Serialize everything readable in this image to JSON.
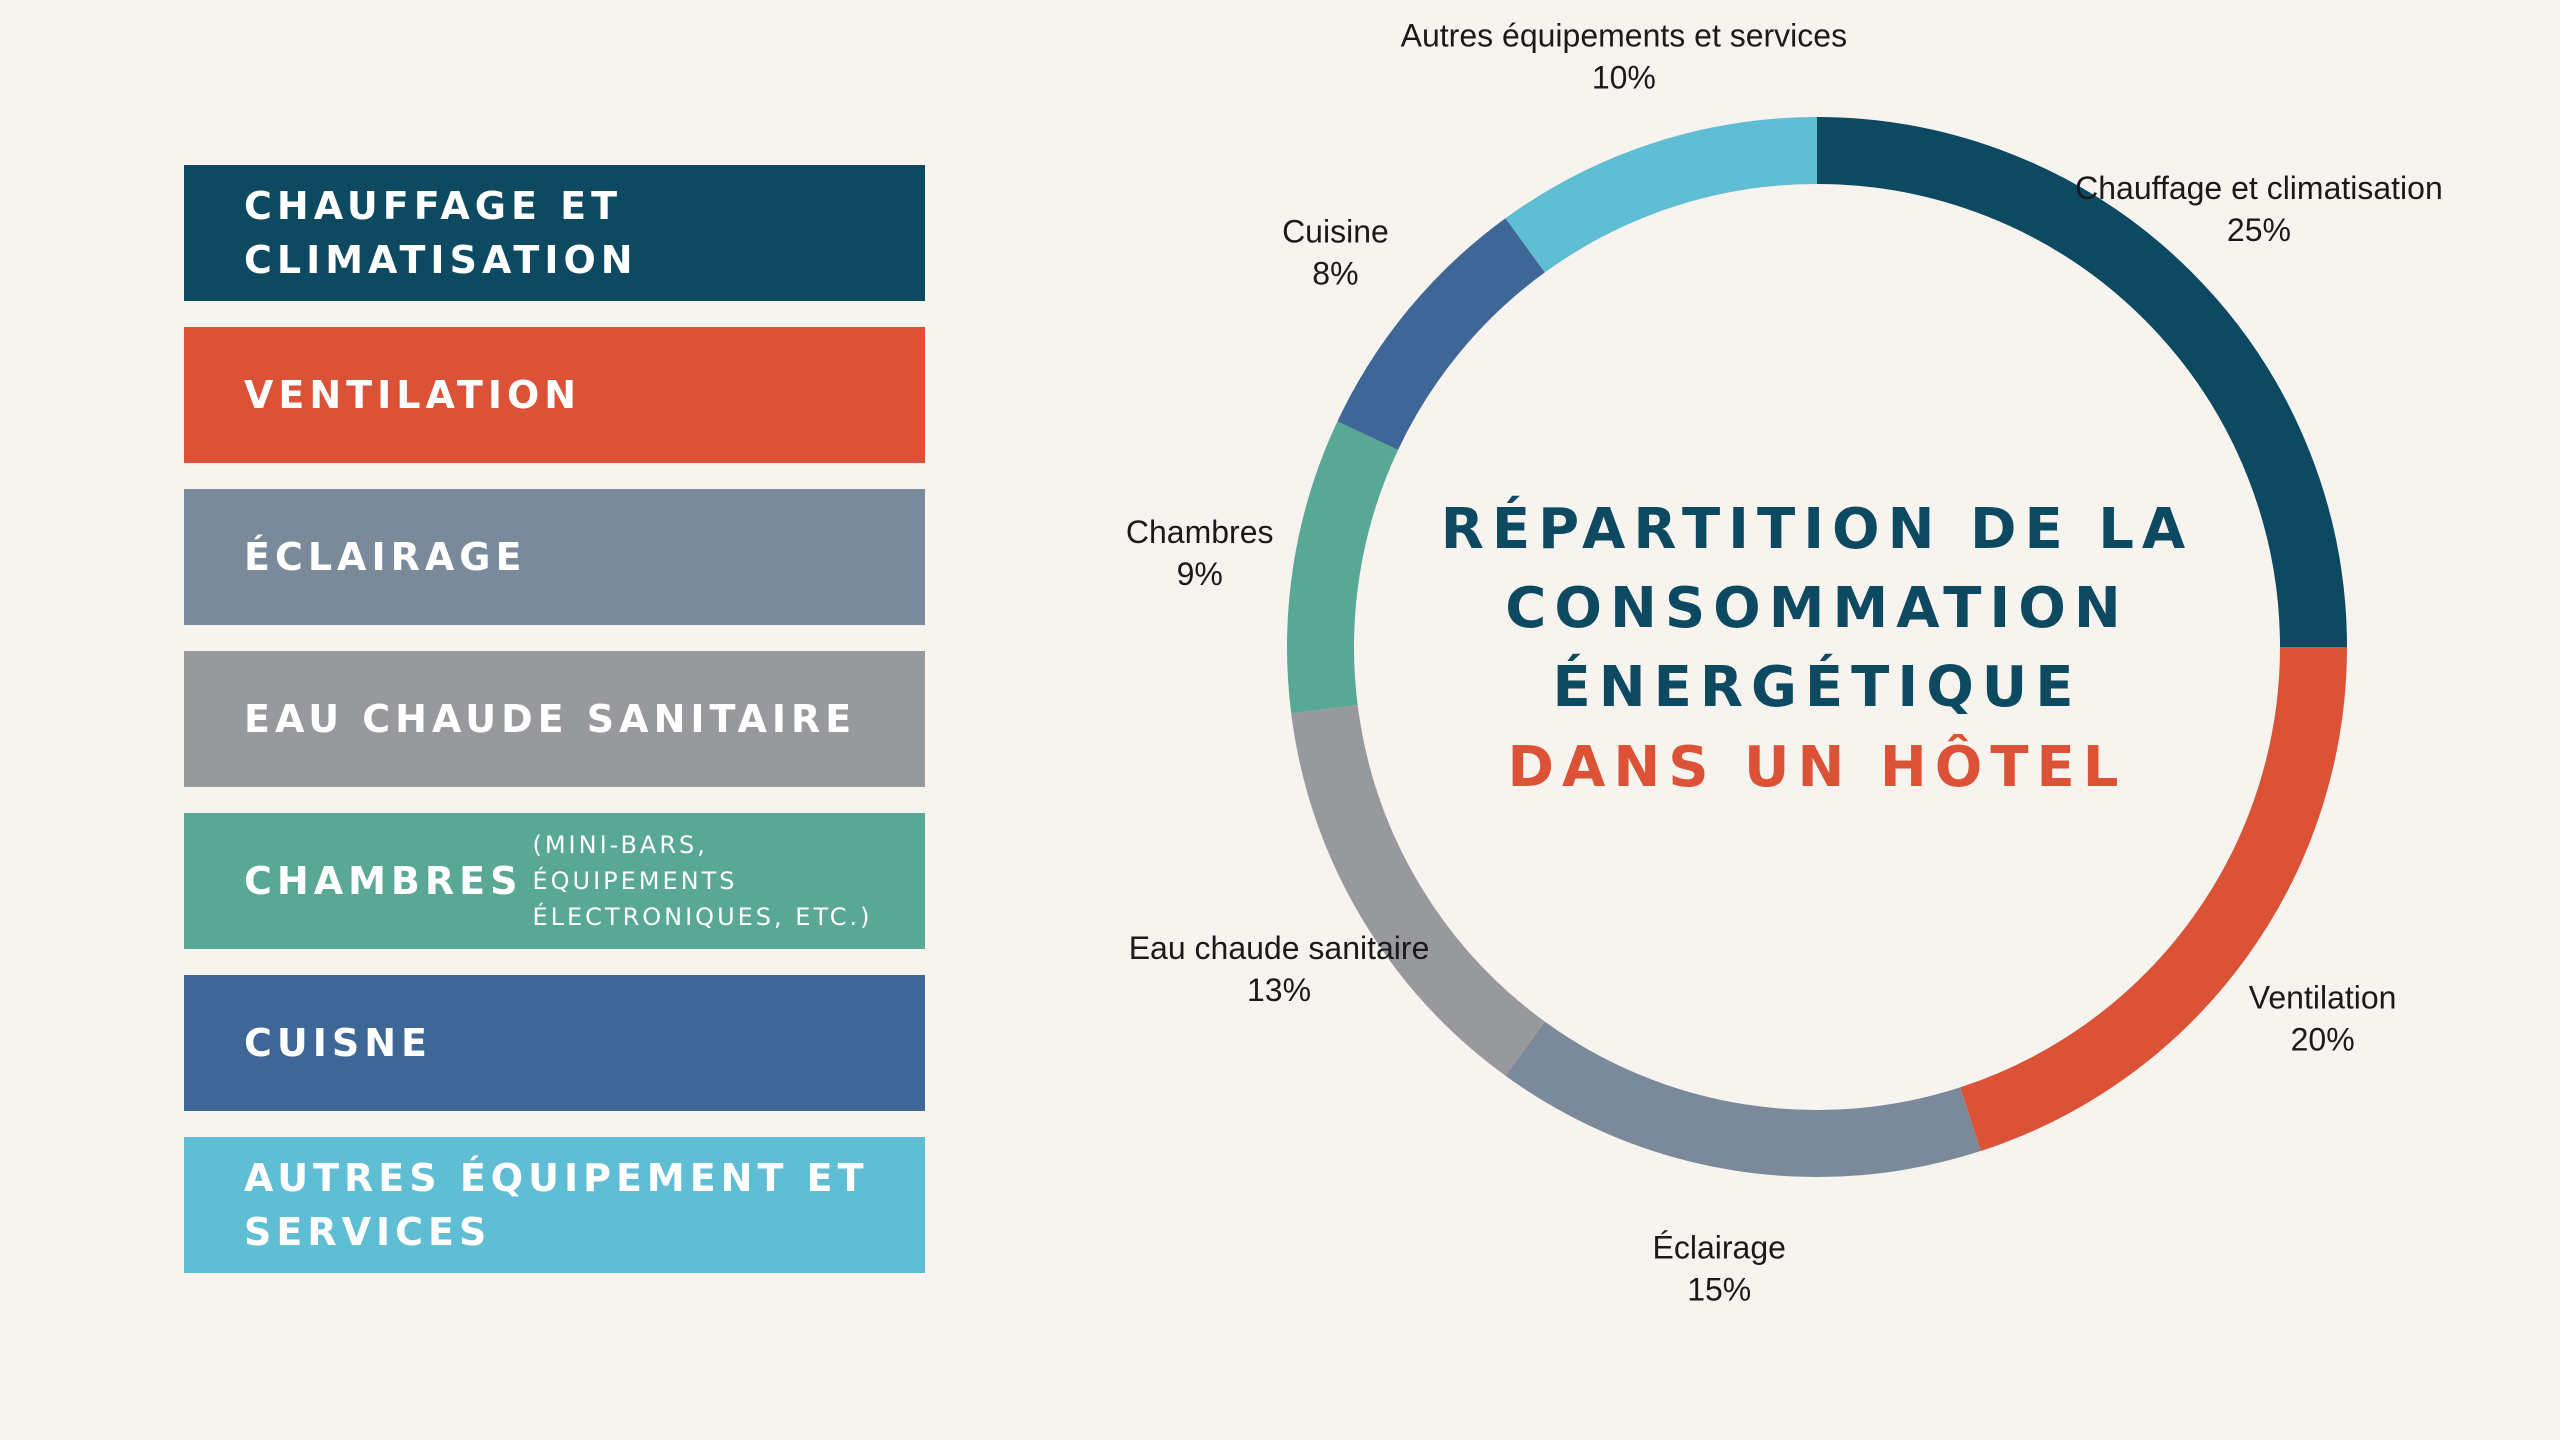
{
  "legend": {
    "items": [
      {
        "label": "CHAUFFAGE ET CLIMATISATION",
        "note": "",
        "color": "#0d4a62"
      },
      {
        "label": "VENTILATION",
        "note": "",
        "color": "#dc5236"
      },
      {
        "label": "ÉCLAIRAGE",
        "note": "",
        "color": "#7a8a9a"
      },
      {
        "label": "EAU CHAUDE SANITAIRE",
        "note": "",
        "color": "#98999d"
      },
      {
        "label": "CHAMBRES",
        "note": "(MINI-BARS, ÉQUIPEMENTS ÉLECTRONIQUES, ETC.)",
        "color": "#59a896"
      },
      {
        "label": "CUISNE",
        "note": "",
        "color": "#3e6697"
      },
      {
        "label": "AUTRES ÉQUIPEMENT ET SERVICES",
        "note": "",
        "color": "#5fbdd4"
      }
    ]
  },
  "chart_data": {
    "type": "pie",
    "donut": true,
    "title_lines": [
      "RÉPARTITION DE LA",
      "CONSOMMATION",
      "ÉNERGÉTIQUE"
    ],
    "title_highlight": "DANS UN HÔTEL",
    "title_color": "#0d4a62",
    "highlight_color": "#dc5236",
    "slices": [
      {
        "name": "Chauffage et climatisation",
        "value": 25,
        "value_label": "25%",
        "color": "#0d4a62"
      },
      {
        "name": "Ventilation",
        "value": 20,
        "value_label": "20%",
        "color": "#dc5236"
      },
      {
        "name": "Éclairage",
        "value": 15,
        "value_label": "15%",
        "color": "#7a8a9a"
      },
      {
        "name": "Eau chaude sanitaire",
        "value": 13,
        "value_label": "13%",
        "color": "#98999d"
      },
      {
        "name": "Chambres",
        "value": 9,
        "value_label": "9%",
        "color": "#59a896"
      },
      {
        "name": "Cuisine",
        "value": 8,
        "value_label": "8%",
        "color": "#3e6697"
      },
      {
        "name": "Autres équipements et services",
        "value": 10,
        "value_label": "10%",
        "color": "#5fbdd4"
      }
    ]
  }
}
